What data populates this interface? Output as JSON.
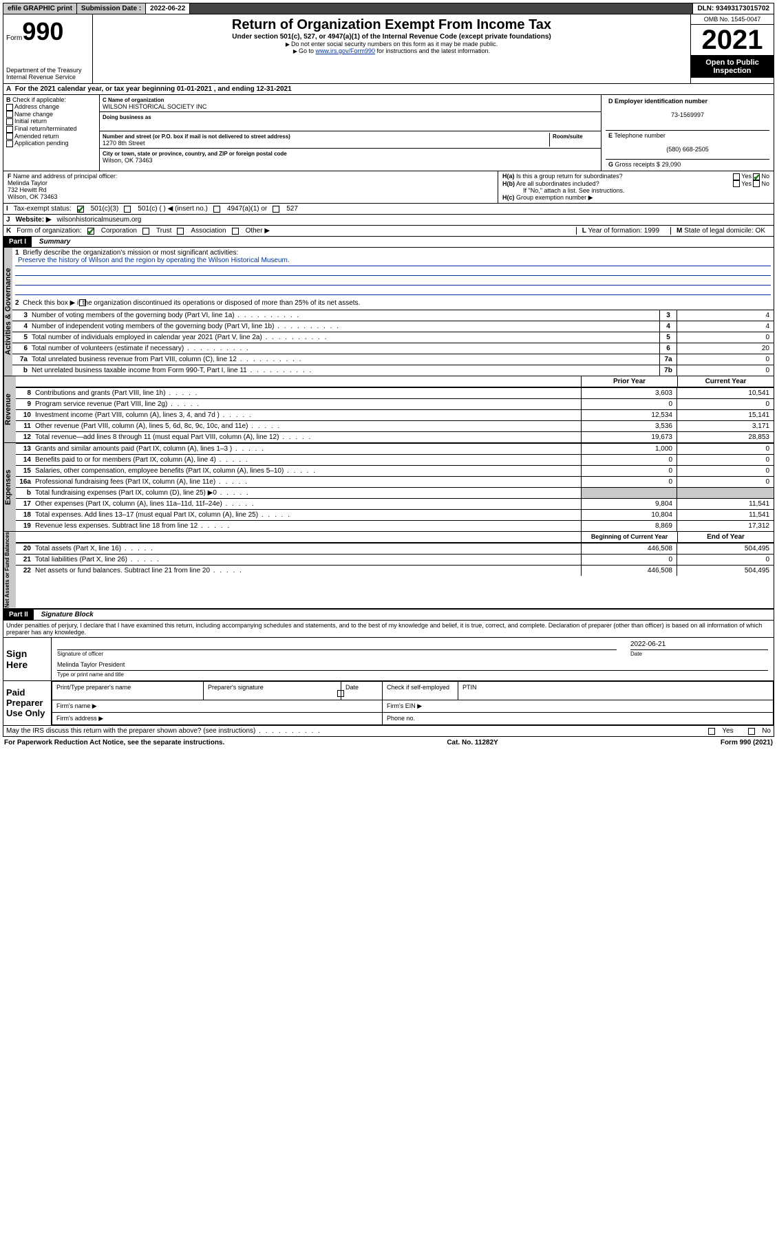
{
  "topbar": {
    "efile": "efile GRAPHIC print",
    "submit_label": "Submission Date :",
    "submit_date": "2022-06-22",
    "dln_label": "DLN:",
    "dln": "93493173015702"
  },
  "header": {
    "form_word": "Form",
    "form_no": "990",
    "dept": "Department of the Treasury",
    "irs": "Internal Revenue Service",
    "title": "Return of Organization Exempt From Income Tax",
    "sub1": "Under section 501(c), 527, or 4947(a)(1) of the Internal Revenue Code (except private foundations)",
    "sub2": "Do not enter social security numbers on this form as it may be made public.",
    "sub3_pre": "Go to ",
    "sub3_link": "www.irs.gov/Form990",
    "sub3_post": " for instructions and the latest information.",
    "omb": "OMB No. 1545-0047",
    "year": "2021",
    "open1": "Open to Public",
    "open2": "Inspection"
  },
  "A": {
    "text_pre": "For the 2021 calendar year, or tax year beginning ",
    "begin": "01-01-2021",
    "mid": " , and ending ",
    "end": "12-31-2021"
  },
  "B": {
    "label": "Check if applicable:",
    "items": [
      "Address change",
      "Name change",
      "Initial return",
      "Final return/terminated",
      "Amended return",
      "Application pending"
    ]
  },
  "C": {
    "name_label": "Name of organization",
    "name": "WILSON HISTORICAL SOCIETY INC",
    "dba_label": "Doing business as",
    "addr_label": "Number and street (or P.O. box if mail is not delivered to street address)",
    "room_label": "Room/suite",
    "addr": "1270 8th Street",
    "city_label": "City or town, state or province, country, and ZIP or foreign postal code",
    "city": "Wilson, OK  73463"
  },
  "D": {
    "label": "Employer identification number",
    "val": "73-1569997"
  },
  "E": {
    "label": "Telephone number",
    "val": "(580) 668-2505"
  },
  "G": {
    "label": "Gross receipts $",
    "val": "29,090"
  },
  "F": {
    "label": "Name and address of principal officer:",
    "name": "Melinda Taylor",
    "addr1": "732 Hewitt Rd",
    "addr2": "Wilson, OK  73463"
  },
  "H": {
    "a": "Is this a group return for subordinates?",
    "b": "Are all subordinates included?",
    "b_note": "If \"No,\" attach a list. See instructions.",
    "c": "Group exemption number ▶",
    "yes": "Yes",
    "no": "No"
  },
  "I": {
    "label": "Tax-exempt status:",
    "o1": "501(c)(3)",
    "o2": "501(c) (  ) ◀ (insert no.)",
    "o3": "4947(a)(1) or",
    "o4": "527"
  },
  "J": {
    "label": "Website: ▶",
    "val": "wilsonhistoricalmuseum.org"
  },
  "K": {
    "label": "Form of organization:",
    "o1": "Corporation",
    "o2": "Trust",
    "o3": "Association",
    "o4": "Other ▶"
  },
  "L": {
    "label": "Year of formation:",
    "val": "1999"
  },
  "M": {
    "label": "State of legal domicile:",
    "val": "OK"
  },
  "part1": {
    "hdr": "Part I",
    "title": "Summary",
    "side_ag": "Activities & Governance",
    "side_rev": "Revenue",
    "side_exp": "Expenses",
    "side_na": "Net Assets or Fund Balances",
    "l1_label": "Briefly describe the organization's mission or most significant activities:",
    "l1_val": "Preserve the history of Wilson and the region by operating the Wilson Historical Museum.",
    "l2": "Check this box ▶      if the organization discontinued its operations or disposed of more than 25% of its net assets.",
    "lines_ag": [
      {
        "n": "3",
        "t": "Number of voting members of the governing body (Part VI, line 1a)",
        "b": "3",
        "v": "4"
      },
      {
        "n": "4",
        "t": "Number of independent voting members of the governing body (Part VI, line 1b)",
        "b": "4",
        "v": "4"
      },
      {
        "n": "5",
        "t": "Total number of individuals employed in calendar year 2021 (Part V, line 2a)",
        "b": "5",
        "v": "0"
      },
      {
        "n": "6",
        "t": "Total number of volunteers (estimate if necessary)",
        "b": "6",
        "v": "20"
      },
      {
        "n": "7a",
        "t": "Total unrelated business revenue from Part VIII, column (C), line 12",
        "b": "7a",
        "v": "0"
      },
      {
        "n": "b",
        "t": "Net unrelated business taxable income from Form 990-T, Part I, line 11",
        "b": "7b",
        "v": "0"
      }
    ],
    "col_prior": "Prior Year",
    "col_curr": "Current Year",
    "lines_rev": [
      {
        "n": "8",
        "t": "Contributions and grants (Part VIII, line 1h)",
        "p": "3,603",
        "c": "10,541"
      },
      {
        "n": "9",
        "t": "Program service revenue (Part VIII, line 2g)",
        "p": "0",
        "c": "0"
      },
      {
        "n": "10",
        "t": "Investment income (Part VIII, column (A), lines 3, 4, and 7d )",
        "p": "12,534",
        "c": "15,141"
      },
      {
        "n": "11",
        "t": "Other revenue (Part VIII, column (A), lines 5, 6d, 8c, 9c, 10c, and 11e)",
        "p": "3,536",
        "c": "3,171"
      },
      {
        "n": "12",
        "t": "Total revenue—add lines 8 through 11 (must equal Part VIII, column (A), line 12)",
        "p": "19,673",
        "c": "28,853"
      }
    ],
    "lines_exp": [
      {
        "n": "13",
        "t": "Grants and similar amounts paid (Part IX, column (A), lines 1–3 )",
        "p": "1,000",
        "c": "0"
      },
      {
        "n": "14",
        "t": "Benefits paid to or for members (Part IX, column (A), line 4)",
        "p": "0",
        "c": "0"
      },
      {
        "n": "15",
        "t": "Salaries, other compensation, employee benefits (Part IX, column (A), lines 5–10)",
        "p": "0",
        "c": "0"
      },
      {
        "n": "16a",
        "t": "Professional fundraising fees (Part IX, column (A), line 11e)",
        "p": "0",
        "c": "0"
      },
      {
        "n": "b",
        "t": "Total fundraising expenses (Part IX, column (D), line 25) ▶0",
        "p": "",
        "c": "",
        "shade": true
      },
      {
        "n": "17",
        "t": "Other expenses (Part IX, column (A), lines 11a–11d, 11f–24e)",
        "p": "9,804",
        "c": "11,541"
      },
      {
        "n": "18",
        "t": "Total expenses. Add lines 13–17 (must equal Part IX, column (A), line 25)",
        "p": "10,804",
        "c": "11,541"
      },
      {
        "n": "19",
        "t": "Revenue less expenses. Subtract line 18 from line 12",
        "p": "8,869",
        "c": "17,312"
      }
    ],
    "col_bocy": "Beginning of Current Year",
    "col_eoy": "End of Year",
    "lines_na": [
      {
        "n": "20",
        "t": "Total assets (Part X, line 16)",
        "p": "446,508",
        "c": "504,495"
      },
      {
        "n": "21",
        "t": "Total liabilities (Part X, line 26)",
        "p": "0",
        "c": "0"
      },
      {
        "n": "22",
        "t": "Net assets or fund balances. Subtract line 21 from line 20",
        "p": "446,508",
        "c": "504,495"
      }
    ]
  },
  "part2": {
    "hdr": "Part II",
    "title": "Signature Block",
    "decl": "Under penalties of perjury, I declare that I have examined this return, including accompanying schedules and statements, and to the best of my knowledge and belief, it is true, correct, and complete. Declaration of preparer (other than officer) is based on all information of which preparer has any knowledge.",
    "sign_here": "Sign Here",
    "sig_officer": "Signature of officer",
    "sig_date_label": "Date",
    "sig_date": "2022-06-21",
    "sig_name": "Melinda Taylor President",
    "sig_name_label": "Type or print name and title",
    "paid": "Paid Preparer Use Only",
    "pt_name": "Print/Type preparer's name",
    "pt_sig": "Preparer's signature",
    "pt_date": "Date",
    "pt_check": "Check       if self-employed",
    "pt_ptin": "PTIN",
    "firm_name": "Firm's name  ▶",
    "firm_ein": "Firm's EIN ▶",
    "firm_addr": "Firm's address ▶",
    "firm_phone": "Phone no.",
    "may": "May the IRS discuss this return with the preparer shown above? (see instructions)"
  },
  "footer": {
    "left": "For Paperwork Reduction Act Notice, see the separate instructions.",
    "mid": "Cat. No. 11282Y",
    "right": "Form 990 (2021)"
  }
}
